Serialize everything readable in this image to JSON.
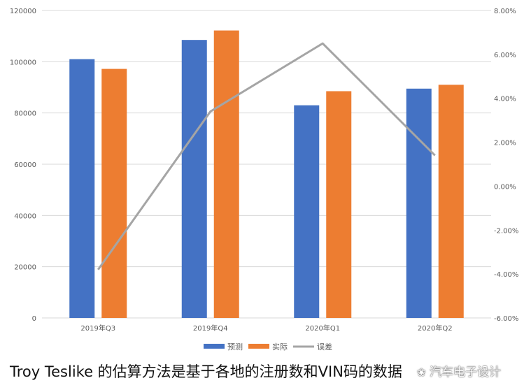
{
  "chart_data": {
    "type": "bar",
    "categories": [
      "2019年Q3",
      "2019年Q4",
      "2020年Q1",
      "2020年Q2"
    ],
    "series": [
      {
        "name": "预测",
        "type": "bar",
        "axis": "left",
        "color": "#4472C4",
        "values": [
          101000,
          108500,
          83000,
          89500
        ]
      },
      {
        "name": "实际",
        "type": "bar",
        "axis": "left",
        "color": "#ED7D31",
        "values": [
          97200,
          112200,
          88500,
          91000
        ]
      },
      {
        "name": "误差",
        "type": "line",
        "axis": "right",
        "color": "#A5A5A5",
        "values": [
          -3.8,
          3.4,
          6.5,
          1.4
        ]
      }
    ],
    "y_left": {
      "min": 0,
      "max": 120000,
      "ticks": [
        "0",
        "20000",
        "40000",
        "60000",
        "80000",
        "100000",
        "120000"
      ]
    },
    "y_right": {
      "min": -6,
      "max": 8,
      "ticks": [
        "-6.00%",
        "-4.00%",
        "-2.00%",
        "0.00%",
        "2.00%",
        "4.00%",
        "6.00%",
        "8.00%"
      ]
    },
    "legend_position": "bottom",
    "grid": true
  },
  "caption": "Troy Teslike 的估算方法是基于各地的注册数和VIN码的数据",
  "watermark": "汽车电子设计"
}
